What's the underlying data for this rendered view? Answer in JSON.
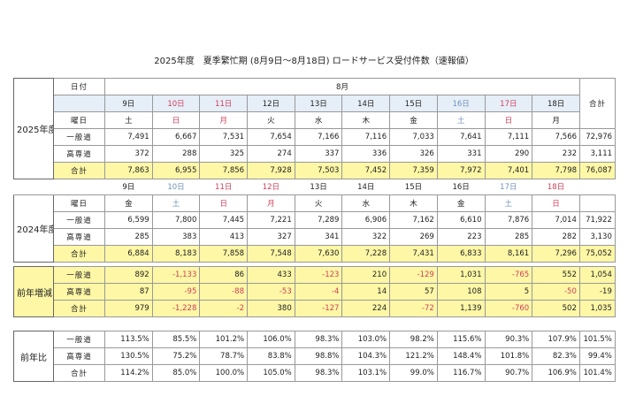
{
  "title": "2025年度　夏季繁忙期 (8月9日～8月18日) ロードサービス受付件数（速報値）",
  "y2025": {
    "label": "2025年度",
    "date_header": "日付",
    "month": "8月",
    "total_header": "合計",
    "dates": [
      "9日",
      "10日",
      "11日",
      "12日",
      "13日",
      "14日",
      "15日",
      "16日",
      "17日",
      "18日"
    ],
    "date_colors": [
      "#222",
      "#d0405a",
      "#d0405a",
      "#222",
      "#222",
      "#222",
      "#222",
      "#6f93b8",
      "#d0405a",
      "#222"
    ],
    "weekday_label": "曜日",
    "weekdays": [
      "土",
      "日",
      "月",
      "火",
      "水",
      "木",
      "金",
      "土",
      "日",
      "月"
    ],
    "rows": [
      {
        "label": "一般道",
        "values": [
          "7,491",
          "6,667",
          "7,531",
          "7,654",
          "7,166",
          "7,116",
          "7,033",
          "7,641",
          "7,111",
          "7,566"
        ],
        "total": "72,976"
      },
      {
        "label": "高専道",
        "values": [
          "372",
          "288",
          "325",
          "274",
          "337",
          "336",
          "326",
          "331",
          "290",
          "232"
        ],
        "total": "3,111"
      },
      {
        "label": "合計",
        "values": [
          "7,863",
          "6,955",
          "7,856",
          "7,928",
          "7,503",
          "7,452",
          "7,359",
          "7,972",
          "7,401",
          "7,798"
        ],
        "total": "76,087",
        "highlight": true
      }
    ]
  },
  "y2024": {
    "label": "2024年度",
    "dates": [
      "9日",
      "10日",
      "11日",
      "12日",
      "13日",
      "14日",
      "15日",
      "16日",
      "17日",
      "18日"
    ],
    "date_colors": [
      "#222",
      "#6f93b8",
      "#d0405a",
      "#d0405a",
      "#222",
      "#222",
      "#222",
      "#222",
      "#6f93b8",
      "#d0405a"
    ],
    "weekday_label": "曜日",
    "weekdays": [
      "金",
      "土",
      "日",
      "月",
      "火",
      "水",
      "木",
      "金",
      "土",
      "日"
    ],
    "rows": [
      {
        "label": "一般道",
        "values": [
          "6,599",
          "7,800",
          "7,445",
          "7,221",
          "7,289",
          "6,906",
          "7,162",
          "6,610",
          "7,876",
          "7,014"
        ],
        "total": "71,922"
      },
      {
        "label": "高専道",
        "values": [
          "285",
          "383",
          "413",
          "327",
          "341",
          "322",
          "269",
          "223",
          "285",
          "282"
        ],
        "total": "3,130"
      },
      {
        "label": "合計",
        "values": [
          "6,884",
          "8,183",
          "7,858",
          "7,548",
          "7,630",
          "7,228",
          "7,431",
          "6,833",
          "8,161",
          "7,296"
        ],
        "total": "75,052",
        "highlight": true
      }
    ]
  },
  "diff": {
    "label": "前年増減",
    "highlight": true,
    "negative_color": "#d0405a",
    "rows": [
      {
        "label": "一般道",
        "values": [
          "892",
          "-1,133",
          "86",
          "433",
          "-123",
          "210",
          "-129",
          "1,031",
          "-765",
          "552"
        ],
        "total": "1,054"
      },
      {
        "label": "高専道",
        "values": [
          "87",
          "-95",
          "-88",
          "-53",
          "-4",
          "14",
          "57",
          "108",
          "5",
          "-50"
        ],
        "total": "-19"
      },
      {
        "label": "合計",
        "values": [
          "979",
          "-1,228",
          "-2",
          "380",
          "-127",
          "224",
          "-72",
          "1,139",
          "-760",
          "502"
        ],
        "total": "1,035"
      }
    ]
  },
  "ratio": {
    "label": "前年比",
    "rows": [
      {
        "label": "一般道",
        "values": [
          "113.5%",
          "85.5%",
          "101.2%",
          "106.0%",
          "98.3%",
          "103.0%",
          "98.2%",
          "115.6%",
          "90.3%",
          "107.9%"
        ],
        "total": "101.5%"
      },
      {
        "label": "高専道",
        "values": [
          "130.5%",
          "75.2%",
          "78.7%",
          "83.8%",
          "98.8%",
          "104.3%",
          "121.2%",
          "148.4%",
          "101.8%",
          "82.3%"
        ],
        "total": "99.4%"
      },
      {
        "label": "合計",
        "values": [
          "114.2%",
          "85.0%",
          "100.0%",
          "105.0%",
          "98.3%",
          "103.1%",
          "99.0%",
          "116.7%",
          "90.7%",
          "106.9%"
        ],
        "total": "101.4%"
      }
    ]
  }
}
